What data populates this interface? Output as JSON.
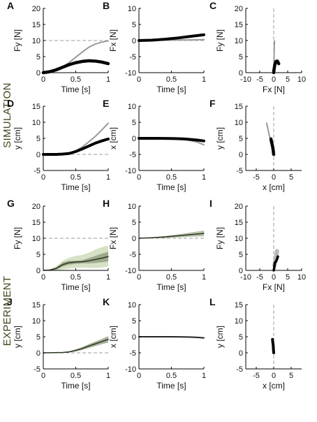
{
  "figure": {
    "sections": [
      "SIMULATION",
      "EXPERIMENT"
    ]
  },
  "chart_data": [
    {
      "id": "A",
      "type": "line",
      "xlabel": "Time [s]",
      "ylabel": "Fy [N]",
      "xlim": [
        0,
        1
      ],
      "ylim": [
        0,
        20
      ],
      "xticks": [
        0,
        0.5,
        1
      ],
      "xticklabels": [
        "0",
        "0.5",
        "1"
      ],
      "yticks": [
        0,
        5,
        10,
        15,
        20
      ],
      "yticklabels": [
        "0",
        "5",
        "10",
        "15",
        "20"
      ],
      "refs": [
        {
          "axis": "y",
          "value": 10
        }
      ],
      "series": [
        {
          "x": [
            0,
            0.1,
            0.2,
            0.3,
            0.4,
            0.5,
            0.6,
            0.7,
            0.8,
            0.9,
            1.0
          ],
          "y": [
            0,
            0.2,
            0.8,
            1.8,
            3.2,
            4.8,
            6.4,
            7.9,
            8.9,
            9.5,
            9.9
          ],
          "color": "#9a9a9a",
          "width": 2
        },
        {
          "x": [
            0,
            0.1,
            0.2,
            0.3,
            0.4,
            0.5,
            0.6,
            0.7,
            0.8,
            0.9,
            1.0
          ],
          "y": [
            0,
            0.3,
            0.9,
            1.7,
            2.5,
            3.1,
            3.5,
            3.7,
            3.6,
            3.3,
            2.8
          ],
          "color": "#000000",
          "width": 4.5
        }
      ]
    },
    {
      "id": "B",
      "type": "line",
      "xlabel": "Time [s]",
      "ylabel": "Fx [N]",
      "xlim": [
        0,
        1
      ],
      "ylim": [
        -10,
        10
      ],
      "xticks": [
        0,
        0.5,
        1
      ],
      "xticklabels": [
        "0",
        "0.5",
        "1"
      ],
      "yticks": [
        -10,
        -5,
        0,
        5,
        10
      ],
      "yticklabels": [
        "-10",
        "-5",
        "0",
        "5",
        "10"
      ],
      "refs": [
        {
          "axis": "y",
          "value": 0
        }
      ],
      "series": [
        {
          "x": [
            0,
            0.2,
            0.4,
            0.6,
            0.8,
            1.0
          ],
          "y": [
            0,
            0.05,
            0.1,
            0.15,
            0.2,
            0.3
          ],
          "color": "#9a9a9a",
          "width": 2
        },
        {
          "x": [
            0,
            0.2,
            0.4,
            0.6,
            0.8,
            1.0
          ],
          "y": [
            0,
            0.1,
            0.4,
            0.8,
            1.3,
            1.8
          ],
          "color": "#000000",
          "width": 4
        }
      ]
    },
    {
      "id": "C",
      "type": "line",
      "xlabel": "Fx [N]",
      "ylabel": "Fy [N]",
      "xlim": [
        -10,
        10
      ],
      "ylim": [
        0,
        20
      ],
      "xticks": [
        -10,
        -5,
        0,
        5,
        10
      ],
      "xticklabels": [
        "-10",
        "-5",
        "0",
        "5",
        "10"
      ],
      "yticks": [
        0,
        5,
        10,
        15,
        20
      ],
      "yticklabels": [
        "0",
        "5",
        "10",
        "15",
        "20"
      ],
      "refs": [
        {
          "axis": "x",
          "value": 0
        }
      ],
      "series": [
        {
          "x": [
            0,
            0.05,
            0.1,
            0.15,
            0.2,
            0.3
          ],
          "y": [
            0,
            2,
            4,
            6,
            8,
            9.9
          ],
          "color": "#9a9a9a",
          "width": 2
        },
        {
          "x": [
            0,
            0.1,
            0.4,
            0.8,
            1.3,
            1.8
          ],
          "y": [
            0,
            0.9,
            2.5,
            3.5,
            3.6,
            2.8
          ],
          "color": "#000000",
          "width": 4.5
        }
      ]
    },
    {
      "id": "D",
      "type": "line",
      "xlabel": "Time [s]",
      "ylabel": "y [cm]",
      "xlim": [
        0,
        1
      ],
      "ylim": [
        -5,
        15
      ],
      "xticks": [
        0,
        0.5,
        1
      ],
      "xticklabels": [
        "0",
        "0.5",
        "1"
      ],
      "yticks": [
        -5,
        0,
        5,
        10,
        15
      ],
      "yticklabels": [
        "-5",
        "0",
        "5",
        "10",
        "15"
      ],
      "refs": [
        {
          "axis": "y",
          "value": 0
        }
      ],
      "series": [
        {
          "x": [
            0,
            0.2,
            0.3,
            0.4,
            0.5,
            0.6,
            0.7,
            0.8,
            0.9,
            1.0
          ],
          "y": [
            0,
            0,
            0.1,
            0.4,
            1.1,
            2.3,
            3.9,
            5.6,
            7.6,
            9.7
          ],
          "color": "#9a9a9a",
          "width": 2
        },
        {
          "x": [
            0,
            0.2,
            0.3,
            0.4,
            0.5,
            0.6,
            0.7,
            0.8,
            0.9,
            1.0
          ],
          "y": [
            0,
            0,
            0.1,
            0.3,
            0.9,
            1.7,
            2.6,
            3.5,
            4.2,
            4.8
          ],
          "color": "#000000",
          "width": 4
        }
      ]
    },
    {
      "id": "E",
      "type": "line",
      "xlabel": "Time [s]",
      "ylabel": "x [cm]",
      "xlim": [
        0,
        1
      ],
      "ylim": [
        -10,
        10
      ],
      "xticks": [
        0,
        0.5,
        1
      ],
      "xticklabels": [
        "0",
        "0.5",
        "1"
      ],
      "yticks": [
        -10,
        -5,
        0,
        5,
        10
      ],
      "yticklabels": [
        "-10",
        "-5",
        "0",
        "5",
        "10"
      ],
      "refs": [],
      "series": [
        {
          "x": [
            0,
            0.3,
            0.5,
            0.6,
            0.7,
            0.8,
            0.9,
            1.0
          ],
          "y": [
            0,
            0,
            -0.1,
            -0.2,
            -0.4,
            -0.7,
            -1.2,
            -2
          ],
          "color": "#9a9a9a",
          "width": 2
        },
        {
          "x": [
            0,
            0.3,
            0.5,
            0.6,
            0.7,
            0.8,
            0.9,
            1.0
          ],
          "y": [
            0,
            0,
            -0.05,
            -0.1,
            -0.2,
            -0.35,
            -0.55,
            -0.8
          ],
          "color": "#000000",
          "width": 4
        }
      ]
    },
    {
      "id": "F",
      "type": "line",
      "xlabel": "x [cm]",
      "ylabel": "y [cm]",
      "xlim": [
        -8,
        8
      ],
      "ylim": [
        -5,
        15
      ],
      "xticks": [
        -5,
        0,
        5
      ],
      "xticklabels": [
        "-5",
        "0",
        "5"
      ],
      "yticks": [
        -5,
        0,
        5,
        10,
        15
      ],
      "yticklabels": [
        "-5",
        "0",
        "5",
        "10",
        "15"
      ],
      "refs": [
        {
          "axis": "x",
          "value": 0
        }
      ],
      "series": [
        {
          "x": [
            0,
            -0.1,
            -0.2,
            -0.4,
            -0.7,
            -1.2,
            -2
          ],
          "y": [
            0,
            0.4,
            1.1,
            2.3,
            3.9,
            5.6,
            9.7
          ],
          "color": "#9a9a9a",
          "width": 2
        },
        {
          "x": [
            0,
            -0.05,
            -0.1,
            -0.2,
            -0.35,
            -0.55,
            -0.8
          ],
          "y": [
            0,
            0.3,
            0.9,
            1.7,
            2.6,
            3.5,
            4.8
          ],
          "color": "#000000",
          "width": 4.5
        }
      ]
    },
    {
      "id": "G",
      "type": "line",
      "xlabel": "Time [s]",
      "ylabel": "Fy [N]",
      "xlim": [
        0,
        1
      ],
      "ylim": [
        0,
        20
      ],
      "xticks": [
        0,
        0.5,
        1
      ],
      "xticklabels": [
        "0",
        "0.5",
        "1"
      ],
      "yticks": [
        0,
        5,
        10,
        15,
        20
      ],
      "yticklabels": [
        "0",
        "5",
        "10",
        "15",
        "20"
      ],
      "refs": [
        {
          "axis": "y",
          "value": 10
        }
      ],
      "bands": [
        {
          "x": [
            0,
            0.1,
            0.2,
            0.3,
            0.4,
            0.5,
            0.6,
            0.7,
            0.8,
            0.9,
            1.0
          ],
          "low": [
            0,
            0,
            0,
            0.3,
            0.6,
            0.8,
            0.9,
            0.8,
            0.7,
            0.9,
            1.2
          ],
          "high": [
            0,
            0.3,
            1.2,
            3,
            4,
            4.5,
            4.8,
            5.5,
            6.5,
            7.2,
            7.8
          ],
          "color": "#cfdcbb",
          "opacity": 0.85
        },
        {
          "x": [
            0,
            0.1,
            0.2,
            0.3,
            0.4,
            0.5,
            0.6,
            0.7,
            0.8,
            0.9,
            1.0
          ],
          "low": [
            0,
            0,
            0.3,
            1.2,
            1.8,
            2,
            2.2,
            2.2,
            2.3,
            2.5,
            2.8
          ],
          "high": [
            0,
            0.2,
            1,
            2.5,
            3,
            3,
            3.2,
            3.8,
            4.5,
            5.2,
            5.8
          ],
          "color": "#8b9679",
          "opacity": 0.75
        }
      ],
      "series": [
        {
          "x": [
            0,
            0.1,
            0.2,
            0.3,
            0.4,
            0.5,
            0.6,
            0.7,
            0.8,
            0.9,
            1.0
          ],
          "y": [
            0,
            0.1,
            0.6,
            1.8,
            2.4,
            2.6,
            2.7,
            3,
            3.4,
            3.8,
            4.3
          ],
          "color": "#2a3620",
          "width": 1.5
        }
      ]
    },
    {
      "id": "H",
      "type": "line",
      "xlabel": "Time [s]",
      "ylabel": "Fx [N]",
      "xlim": [
        0,
        1
      ],
      "ylim": [
        -10,
        10
      ],
      "xticks": [
        0,
        0.5,
        1
      ],
      "xticklabels": [
        "0",
        "0.5",
        "1"
      ],
      "yticks": [
        -10,
        -5,
        0,
        5,
        10
      ],
      "yticklabels": [
        "-10",
        "-5",
        "0",
        "5",
        "10"
      ],
      "refs": [
        {
          "axis": "y",
          "value": 0
        }
      ],
      "bands": [
        {
          "x": [
            0,
            0.2,
            0.4,
            0.6,
            0.8,
            1.0
          ],
          "low": [
            -0.1,
            0,
            0.1,
            0.3,
            0.5,
            0.6
          ],
          "high": [
            0.1,
            0.3,
            0.7,
            1.2,
            1.8,
            2.4
          ],
          "color": "#aab59b",
          "opacity": 0.85
        }
      ],
      "series": [
        {
          "x": [
            0,
            0.2,
            0.4,
            0.6,
            0.8,
            1.0
          ],
          "y": [
            0,
            0.15,
            0.4,
            0.75,
            1.15,
            1.5
          ],
          "color": "#2a3620",
          "width": 1.5
        }
      ]
    },
    {
      "id": "I",
      "type": "line",
      "xlabel": "Fx [N]",
      "ylabel": "Fy [N]",
      "xlim": [
        -10,
        10
      ],
      "ylim": [
        0,
        20
      ],
      "xticks": [
        -10,
        -5,
        0,
        5,
        10
      ],
      "xticklabels": [
        "-10",
        "-5",
        "0",
        "5",
        "10"
      ],
      "yticks": [
        0,
        5,
        10,
        15,
        20
      ],
      "yticklabels": [
        "0",
        "5",
        "10",
        "15",
        "20"
      ],
      "refs": [
        {
          "axis": "x",
          "value": 0
        }
      ],
      "series": [
        {
          "x": [
            0.3,
            0.6,
            0.8,
            1.0,
            1.2
          ],
          "y": [
            1.5,
            3,
            4,
            5,
            6
          ],
          "color": "#b8b8b8",
          "width": 6
        },
        {
          "x": [
            0,
            0.15,
            0.4,
            0.75,
            1.15,
            1.5
          ],
          "y": [
            0,
            0.6,
            2.4,
            2.7,
            3.4,
            4.3
          ],
          "color": "#000000",
          "width": 3.5
        }
      ]
    },
    {
      "id": "J",
      "type": "line",
      "xlabel": "Time [s]",
      "ylabel": "y [cm]",
      "xlim": [
        0,
        1
      ],
      "ylim": [
        -5,
        15
      ],
      "xticks": [
        0,
        0.5,
        1
      ],
      "xticklabels": [
        "0",
        "0.5",
        "1"
      ],
      "yticks": [
        -5,
        0,
        5,
        10,
        15
      ],
      "yticklabels": [
        "-5",
        "0",
        "5",
        "10",
        "15"
      ],
      "refs": [
        {
          "axis": "y",
          "value": 0
        }
      ],
      "bands": [
        {
          "x": [
            0,
            0.3,
            0.4,
            0.5,
            0.6,
            0.7,
            0.8,
            0.9,
            1.0
          ],
          "low": [
            0,
            0,
            0.1,
            0.4,
            0.9,
            1.5,
            2.1,
            2.7,
            3.2
          ],
          "high": [
            0,
            0.2,
            0.5,
            1.1,
            1.8,
            2.7,
            3.5,
            4.3,
            5.2
          ],
          "color": "#9aa58a",
          "opacity": 0.85
        }
      ],
      "series": [
        {
          "x": [
            0,
            0.3,
            0.4,
            0.5,
            0.6,
            0.7,
            0.8,
            0.9,
            1.0
          ],
          "y": [
            0,
            0.1,
            0.3,
            0.75,
            1.35,
            2.1,
            2.8,
            3.5,
            4.2
          ],
          "color": "#2a3620",
          "width": 1.5
        }
      ]
    },
    {
      "id": "K",
      "type": "line",
      "xlabel": "Time [s]",
      "ylabel": "x [cm]",
      "xlim": [
        0,
        1
      ],
      "ylim": [
        -10,
        10
      ],
      "xticks": [
        0,
        0.5,
        1
      ],
      "xticklabels": [
        "0",
        "0.5",
        "1"
      ],
      "yticks": [
        -10,
        -5,
        0,
        5,
        10
      ],
      "yticklabels": [
        "-10",
        "-5",
        "0",
        "5",
        "10"
      ],
      "refs": [],
      "series": [
        {
          "x": [
            0,
            0.5,
            0.7,
            0.8,
            0.9,
            1.0
          ],
          "y": [
            0,
            0,
            -0.05,
            -0.1,
            -0.2,
            -0.35
          ],
          "color": "#222222",
          "width": 2
        }
      ]
    },
    {
      "id": "L",
      "type": "line",
      "xlabel": "x [cm]",
      "ylabel": "y [cm]",
      "xlim": [
        -8,
        8
      ],
      "ylim": [
        -5,
        15
      ],
      "xticks": [
        -5,
        0,
        5
      ],
      "xticklabels": [
        "-5",
        "0",
        "5"
      ],
      "yticks": [
        -5,
        0,
        5,
        10,
        15
      ],
      "yticklabels": [
        "-5",
        "0",
        "5",
        "10",
        "15"
      ],
      "refs": [
        {
          "axis": "x",
          "value": 0
        }
      ],
      "series": [
        {
          "x": [
            0,
            -0.05,
            -0.1,
            -0.15,
            -0.25,
            -0.35
          ],
          "y": [
            0,
            0.6,
            1.5,
            2.4,
            3.2,
            4.2
          ],
          "color": "#000000",
          "width": 4
        }
      ]
    }
  ]
}
